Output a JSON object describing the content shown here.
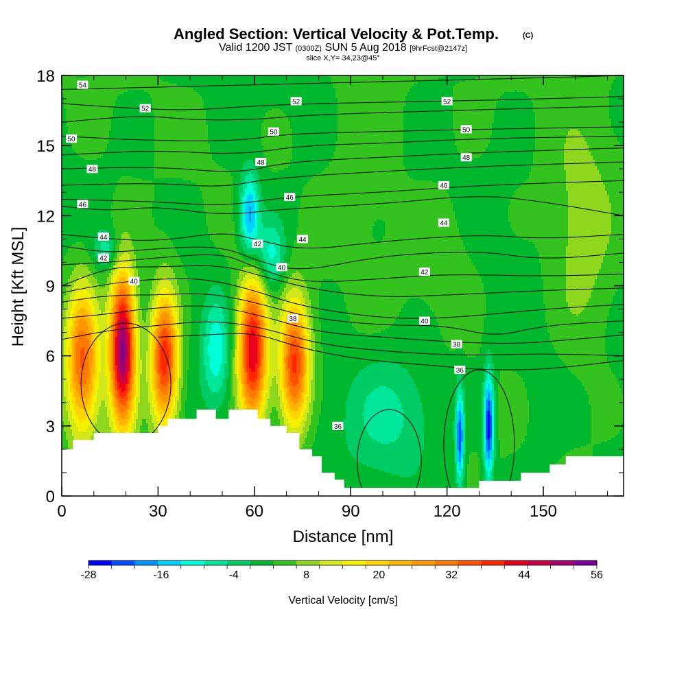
{
  "header": {
    "title": "Angled Section: Vertical Velocity & Pot.Temp.",
    "title_unit": "(C)",
    "valid_prefix": "Valid 1200 JST",
    "valid_utc": "(0300Z)",
    "valid_date": "SUN 5 Aug 2018",
    "forecast": "[9hrFcst@2147z]",
    "slice": "slice X,Y= 34,23@45°"
  },
  "chart_data": {
    "type": "heatmap",
    "title": "Angled Section: Vertical Velocity & Pot.Temp.",
    "xlabel": "Distance [nm]",
    "ylabel": "Height [Kft MSL]",
    "xlim": [
      0,
      175
    ],
    "ylim": [
      0,
      18
    ],
    "x_ticks": [
      0,
      30,
      60,
      90,
      120,
      150
    ],
    "y_ticks": [
      0,
      3,
      6,
      9,
      12,
      15,
      18
    ],
    "colorbar": {
      "label": "Vertical Velocity [cm/s]",
      "min": -28,
      "max": 56,
      "step": 4,
      "tick_values": [
        -28,
        -16,
        -4,
        8,
        20,
        32,
        44,
        56
      ],
      "colors": [
        "#0000ff",
        "#0050ff",
        "#0096ff",
        "#00d2ff",
        "#00ffd8",
        "#00e69a",
        "#00cc66",
        "#00b82e",
        "#33c21e",
        "#8fd61e",
        "#d2e81a",
        "#f5f000",
        "#ffd400",
        "#ffb400",
        "#ff9600",
        "#ff7800",
        "#ff5000",
        "#ff2800",
        "#e6001e",
        "#c80046",
        "#a0006e",
        "#780096"
      ]
    },
    "terrain_kft": [
      [
        0,
        2.0
      ],
      [
        3.5,
        2.0
      ],
      [
        3.5,
        2.4
      ],
      [
        10,
        2.4
      ],
      [
        10,
        2.7
      ],
      [
        30,
        2.7
      ],
      [
        30,
        3.0
      ],
      [
        33,
        3.0
      ],
      [
        33,
        3.3
      ],
      [
        42,
        3.3
      ],
      [
        42,
        3.7
      ],
      [
        48,
        3.7
      ],
      [
        48,
        3.3
      ],
      [
        52,
        3.3
      ],
      [
        52,
        3.7
      ],
      [
        61,
        3.7
      ],
      [
        61,
        3.3
      ],
      [
        65,
        3.3
      ],
      [
        65,
        3.0
      ],
      [
        70,
        3.0
      ],
      [
        70,
        2.7
      ],
      [
        74,
        2.7
      ],
      [
        74,
        2.0
      ],
      [
        78,
        2.0
      ],
      [
        78,
        1.7
      ],
      [
        81,
        1.7
      ],
      [
        81,
        1.0
      ],
      [
        85,
        1.0
      ],
      [
        85,
        0.7
      ],
      [
        88,
        0.7
      ],
      [
        88,
        0.35
      ],
      [
        130,
        0.35
      ],
      [
        130,
        0.65
      ],
      [
        143,
        0.65
      ],
      [
        143,
        1.0
      ],
      [
        152,
        1.0
      ],
      [
        152,
        1.35
      ],
      [
        157,
        1.35
      ],
      [
        157,
        1.7
      ],
      [
        175,
        1.7
      ]
    ],
    "updrafts": [
      {
        "x": 6.5,
        "y": 5.8,
        "sx": 3.6,
        "sy": 2.2,
        "w": 33
      },
      {
        "x": 19,
        "y": 6.3,
        "sx": 2.8,
        "sy": 2.3,
        "w": 54
      },
      {
        "x": 32,
        "y": 5.9,
        "sx": 3.0,
        "sy": 2.0,
        "w": 40
      },
      {
        "x": 59.5,
        "y": 6.2,
        "sx": 3.2,
        "sy": 2.2,
        "w": 45
      },
      {
        "x": 72.5,
        "y": 5.6,
        "sx": 3.2,
        "sy": 1.9,
        "w": 38
      },
      {
        "x": 48,
        "y": 6.2,
        "sx": 3.0,
        "sy": 1.6,
        "w": -14
      },
      {
        "x": 58.5,
        "y": 12.0,
        "sx": 2.2,
        "sy": 1.3,
        "w": -22
      },
      {
        "x": 65,
        "y": 10.3,
        "sx": 3.2,
        "sy": 1.1,
        "w": -14
      },
      {
        "x": 14,
        "y": 10.5,
        "sx": 3.0,
        "sy": 0.6,
        "w": -10
      },
      {
        "x": 102,
        "y": 3.5,
        "sx": 10,
        "sy": 1.8,
        "w": -9
      },
      {
        "x": 124,
        "y": 2.5,
        "sx": 0.9,
        "sy": 1.4,
        "w": -26
      },
      {
        "x": 133,
        "y": 3.0,
        "sx": 1.1,
        "sy": 1.6,
        "w": -30
      },
      {
        "x": 150,
        "y": 3.5,
        "sx": 5,
        "sy": 2.2,
        "w": -1.5
      },
      {
        "x": 95,
        "y": 15.5,
        "sx": 8,
        "sy": 3.0,
        "w": 4
      },
      {
        "x": 162,
        "y": 11.0,
        "sx": 7,
        "sy": 3.5,
        "w": 7
      },
      {
        "x": 118,
        "y": 10.5,
        "sx": 8,
        "sy": 2.0,
        "w": 3
      }
    ],
    "theta_contours": [
      {
        "label": "54",
        "pts": [
          [
            0,
            17.4
          ],
          [
            30,
            17.5
          ],
          [
            60,
            17.6
          ],
          [
            90,
            17.7
          ],
          [
            120,
            17.8
          ],
          [
            150,
            17.9
          ],
          [
            175,
            18.0
          ]
        ]
      },
      {
        "label": "52",
        "pts": [
          [
            0,
            16.8
          ],
          [
            20,
            16.6
          ],
          [
            40,
            16.5
          ],
          [
            60,
            16.7
          ],
          [
            80,
            16.8
          ],
          [
            120,
            16.9
          ],
          [
            150,
            17.0
          ],
          [
            175,
            17.1
          ]
        ]
      },
      {
        "label": "52",
        "pts": [
          [
            0,
            16.0
          ],
          [
            25,
            16.3
          ],
          [
            40,
            16.1
          ],
          [
            60,
            16.1
          ],
          [
            75,
            16.3
          ],
          [
            120,
            16.5
          ],
          [
            150,
            16.6
          ],
          [
            175,
            16.7
          ]
        ]
      },
      {
        "label": "50",
        "pts": [
          [
            0,
            15.4
          ],
          [
            30,
            15.2
          ],
          [
            55,
            15.2
          ],
          [
            70,
            15.5
          ],
          [
            100,
            15.6
          ],
          [
            130,
            15.7
          ],
          [
            175,
            15.8
          ]
        ]
      },
      {
        "label": "50",
        "pts": [
          [
            0,
            14.6
          ],
          [
            30,
            14.8
          ],
          [
            55,
            14.6
          ],
          [
            75,
            15.0
          ],
          [
            100,
            15.1
          ],
          [
            130,
            15.3
          ],
          [
            175,
            15.4
          ]
        ]
      },
      {
        "label": "48",
        "pts": [
          [
            0,
            14.0
          ],
          [
            30,
            14.1
          ],
          [
            55,
            13.8
          ],
          [
            70,
            14.3
          ],
          [
            100,
            14.5
          ],
          [
            130,
            14.7
          ],
          [
            175,
            14.9
          ]
        ]
      },
      {
        "label": "48",
        "pts": [
          [
            0,
            13.3
          ],
          [
            30,
            13.4
          ],
          [
            50,
            13.2
          ],
          [
            65,
            13.6
          ],
          [
            100,
            13.9
          ],
          [
            130,
            14.1
          ],
          [
            175,
            14.3
          ]
        ]
      },
      {
        "label": "46",
        "pts": [
          [
            0,
            12.7
          ],
          [
            30,
            12.6
          ],
          [
            50,
            12.4
          ],
          [
            70,
            12.8
          ],
          [
            100,
            13.0
          ],
          [
            130,
            13.3
          ],
          [
            175,
            13.5
          ]
        ]
      },
      {
        "label": "46",
        "pts": [
          [
            0,
            12.4
          ],
          [
            15,
            12.2
          ],
          [
            30,
            12.4
          ],
          [
            50,
            12.0
          ],
          [
            70,
            12.3
          ],
          [
            100,
            12.5
          ],
          [
            130,
            12.9
          ],
          [
            150,
            12.6
          ],
          [
            175,
            12.0
          ]
        ]
      },
      {
        "label": "44",
        "pts": [
          [
            0,
            11.2
          ],
          [
            15,
            11.0
          ],
          [
            30,
            10.9
          ],
          [
            50,
            11.3
          ],
          [
            60,
            11.0
          ],
          [
            75,
            10.5
          ],
          [
            100,
            10.9
          ],
          [
            130,
            11.2
          ],
          [
            150,
            11.0
          ],
          [
            175,
            11.2
          ]
        ]
      },
      {
        "label": "44",
        "pts": [
          [
            0,
            10.7
          ],
          [
            15,
            10.4
          ],
          [
            30,
            10.6
          ],
          [
            50,
            10.7
          ],
          [
            62,
            10.0
          ],
          [
            75,
            9.6
          ],
          [
            100,
            10.3
          ],
          [
            130,
            10.5
          ],
          [
            150,
            10.1
          ],
          [
            175,
            10.4
          ]
        ]
      },
      {
        "label": "42",
        "pts": [
          [
            0,
            9.9
          ],
          [
            15,
            10.0
          ],
          [
            30,
            10.2
          ],
          [
            50,
            10.4
          ],
          [
            60,
            9.8
          ],
          [
            75,
            9.1
          ],
          [
            100,
            9.3
          ],
          [
            120,
            9.5
          ],
          [
            150,
            9.4
          ],
          [
            175,
            9.5
          ]
        ]
      },
      {
        "label": "42",
        "pts": [
          [
            0,
            9.0
          ],
          [
            15,
            9.8
          ],
          [
            30,
            9.8
          ],
          [
            50,
            9.9
          ],
          [
            65,
            9.3
          ],
          [
            80,
            8.8
          ],
          [
            100,
            8.5
          ],
          [
            120,
            8.6
          ],
          [
            150,
            8.8
          ],
          [
            175,
            8.9
          ]
        ]
      },
      {
        "label": "40",
        "pts": [
          [
            0,
            8.7
          ],
          [
            15,
            9.1
          ],
          [
            30,
            9.3
          ],
          [
            45,
            9.3
          ],
          [
            60,
            8.8
          ],
          [
            75,
            8.1
          ],
          [
            100,
            7.6
          ],
          [
            120,
            7.6
          ],
          [
            150,
            8.0
          ],
          [
            175,
            8.2
          ]
        ]
      },
      {
        "label": "40",
        "pts": [
          [
            0,
            8.3
          ],
          [
            15,
            8.6
          ],
          [
            30,
            8.6
          ],
          [
            45,
            8.7
          ],
          [
            60,
            8.3
          ],
          [
            78,
            7.6
          ],
          [
            100,
            7.3
          ],
          [
            120,
            7.3
          ],
          [
            135,
            6.8
          ],
          [
            150,
            7.3
          ],
          [
            175,
            7.5
          ]
        ]
      },
      {
        "label": "38",
        "pts": [
          [
            0,
            7.6
          ],
          [
            15,
            7.8
          ],
          [
            25,
            8.0
          ],
          [
            45,
            8.2
          ],
          [
            60,
            7.8
          ],
          [
            80,
            7.0
          ],
          [
            100,
            6.8
          ],
          [
            120,
            6.6
          ],
          [
            140,
            6.5
          ],
          [
            160,
            6.7
          ],
          [
            175,
            6.9
          ]
        ]
      },
      {
        "label": "38",
        "pts": [
          [
            0,
            6.7
          ],
          [
            15,
            7.1
          ],
          [
            30,
            7.3
          ],
          [
            45,
            7.5
          ],
          [
            60,
            7.3
          ],
          [
            80,
            6.5
          ],
          [
            100,
            6.2
          ],
          [
            125,
            6.0
          ],
          [
            150,
            6.1
          ],
          [
            175,
            6.0
          ]
        ]
      },
      {
        "label": "36",
        "pts": [
          [
            30,
            6.8
          ],
          [
            45,
            6.9
          ],
          [
            60,
            7.0
          ],
          [
            75,
            6.3
          ],
          [
            95,
            5.8
          ],
          [
            115,
            5.6
          ],
          [
            130,
            5.4
          ],
          [
            150,
            5.4
          ],
          [
            175,
            5.8
          ]
        ]
      }
    ],
    "contour_labels": [
      {
        "text": "54",
        "x": 6.5,
        "y": 17.6
      },
      {
        "text": "52",
        "x": 26,
        "y": 16.6
      },
      {
        "text": "52",
        "x": 73,
        "y": 16.9
      },
      {
        "text": "52",
        "x": 120,
        "y": 16.9
      },
      {
        "text": "50",
        "x": 3,
        "y": 15.3
      },
      {
        "text": "50",
        "x": 66,
        "y": 15.6
      },
      {
        "text": "50",
        "x": 126,
        "y": 15.7
      },
      {
        "text": "48",
        "x": 9.5,
        "y": 14.0
      },
      {
        "text": "48",
        "x": 62,
        "y": 14.3
      },
      {
        "text": "48",
        "x": 126,
        "y": 14.5
      },
      {
        "text": "46",
        "x": 6.5,
        "y": 12.5
      },
      {
        "text": "46",
        "x": 71,
        "y": 12.8
      },
      {
        "text": "46",
        "x": 119,
        "y": 13.3
      },
      {
        "text": "44",
        "x": 13,
        "y": 11.1
      },
      {
        "text": "44",
        "x": 75,
        "y": 11.0
      },
      {
        "text": "44",
        "x": 119,
        "y": 11.7
      },
      {
        "text": "42",
        "x": 13,
        "y": 10.2
      },
      {
        "text": "42",
        "x": 61,
        "y": 10.8
      },
      {
        "text": "42",
        "x": 113,
        "y": 9.6
      },
      {
        "text": "40",
        "x": 22.5,
        "y": 9.2
      },
      {
        "text": "40",
        "x": 68.5,
        "y": 9.8
      },
      {
        "text": "40",
        "x": 113,
        "y": 7.5
      },
      {
        "text": "38",
        "x": 72,
        "y": 7.6
      },
      {
        "text": "38",
        "x": 123,
        "y": 6.5
      },
      {
        "text": "36",
        "x": 124,
        "y": 5.4
      },
      {
        "text": "36",
        "x": 86,
        "y": 3.0
      }
    ]
  }
}
